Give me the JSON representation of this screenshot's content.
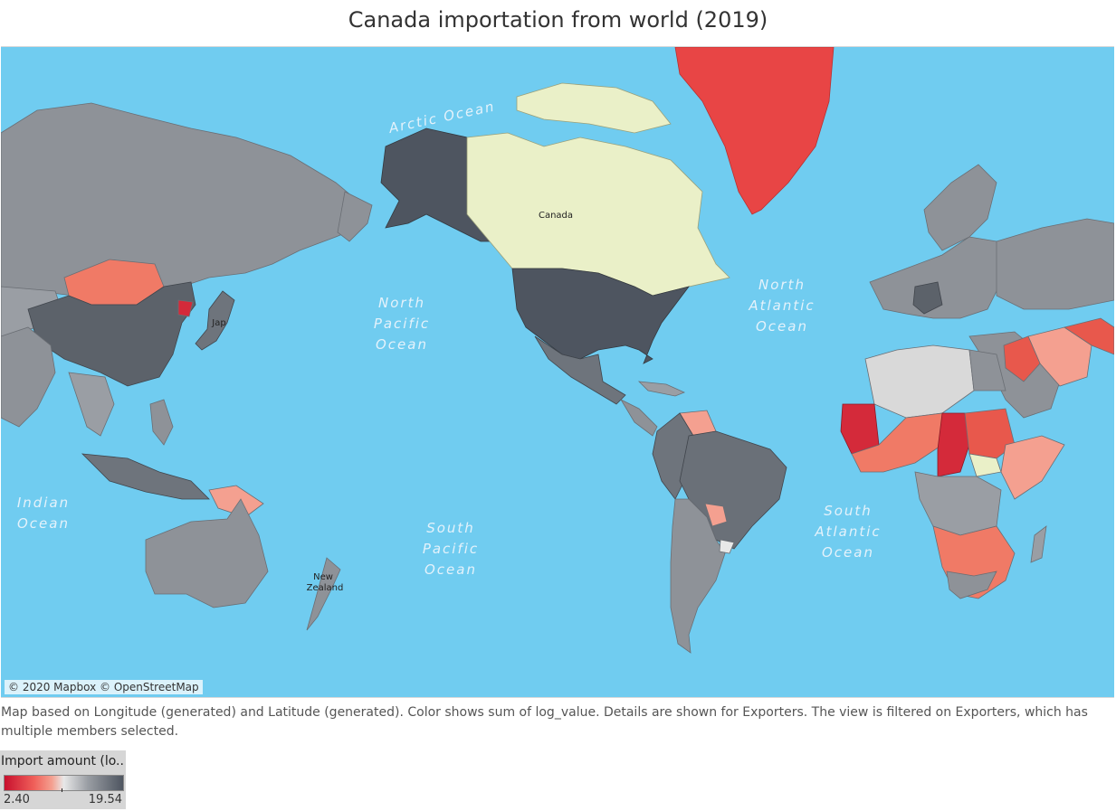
{
  "title": "Canada importation from world (2019)",
  "map": {
    "ocean_color": "#70ccf0",
    "ocean_labels": {
      "arctic": "Arctic Ocean",
      "north_pacific": [
        "North",
        "Pacific",
        "Ocean"
      ],
      "north_atlantic": [
        "North",
        "Atlantic",
        "Ocean"
      ],
      "indian": [
        "Indian",
        "Ocean"
      ],
      "south_pacific": [
        "South",
        "Pacific",
        "Ocean"
      ],
      "south_atlantic": [
        "South",
        "Atlantic",
        "Ocean"
      ]
    },
    "country_labels": {
      "canada": "Canada",
      "japan": "Jap",
      "new_zealand": [
        "New",
        "Zealand"
      ]
    },
    "regions": [
      {
        "name": "Greenland",
        "color": "#e84545"
      },
      {
        "name": "Canada",
        "color": "#eaf0c8"
      },
      {
        "name": "United States",
        "color": "#4e5560"
      },
      {
        "name": "Alaska",
        "color": "#4e5560"
      },
      {
        "name": "Mexico",
        "color": "#6e747c"
      },
      {
        "name": "Russia",
        "color": "#8e9298"
      },
      {
        "name": "China",
        "color": "#5c626a"
      },
      {
        "name": "Mongolia",
        "color": "#f07a66"
      },
      {
        "name": "Australia",
        "color": "#8e9298"
      },
      {
        "name": "Brazil",
        "color": "#6a7078"
      },
      {
        "name": "Argentina/Chile",
        "color": "#8e9298"
      },
      {
        "name": "Western Sahara",
        "color": "#d42a3a"
      },
      {
        "name": "Sudan",
        "color": "#e8584c"
      },
      {
        "name": "South Sudan",
        "color": "#eaf0c8"
      }
    ],
    "attribution": "© 2020 Mapbox © OpenStreetMap"
  },
  "caption": "Map based on Longitude (generated) and Latitude (generated).  Color shows sum of log_value.  Details are shown for Exporters. The view is filtered on Exporters, which has multiple members selected.",
  "legend": {
    "title": "Import amount (lo..",
    "min": "2.40",
    "max": "19.54"
  }
}
